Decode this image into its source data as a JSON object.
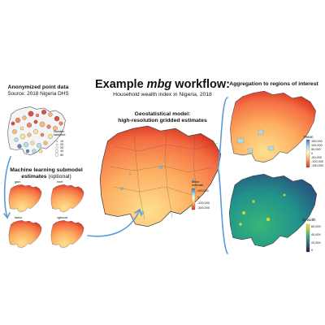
{
  "title": {
    "prefix": "Example ",
    "emph": "mbg",
    "suffix": " workflow:"
  },
  "subtitle": "Household wealth index in Nigeria, 2018",
  "panels": {
    "points": {
      "heading": "Anonymized point data",
      "source": "Source: 2018 Nigeria DHS",
      "legend_title": "Number\nsampled",
      "legend_values": [
        "10",
        "20",
        "30",
        "40",
        "50"
      ]
    },
    "ml": {
      "heading_1": "Machine learning submodel",
      "heading_2a": "estimates",
      "heading_2b": " (optional)",
      "sub_labels": [
        "gam",
        "enet",
        "lasso",
        "xgboost"
      ]
    },
    "geo": {
      "heading_1": "Geostatistical model:",
      "heading_2": "high-resolution gridded estimates",
      "legend_title": "Mean\nestimate",
      "legend_ticks": [
        "200,000",
        "0",
        "-200,000",
        "-300,000"
      ]
    },
    "agg": {
      "heading": "Aggregation to regions of interest",
      "mean_title": "Mean",
      "mean_ticks": [
        "150,000",
        "100,000",
        "50,000",
        "0",
        "-50,000",
        "-100,000",
        "-150,000"
      ],
      "ui_title": "UI width",
      "ui_ticks": [
        "60,000",
        "40,000",
        "20,000",
        "0"
      ]
    }
  },
  "colors": {
    "wealth_low": "#d7301f",
    "wealth_mid": "#fdae61",
    "wealth_high": "#abd9e9",
    "ui_low": "#30123b",
    "ui_mid": "#1f9e89",
    "ui_high": "#fde725",
    "arrow": "#5b9bd5"
  }
}
